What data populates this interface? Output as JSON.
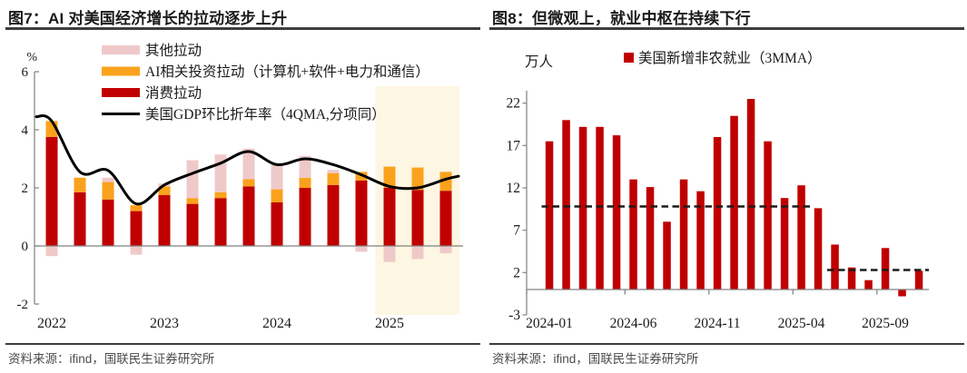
{
  "panels": [
    {
      "title": "图7：AI 对美国经济增长的拉动逐步上升",
      "source": "资料来源：ifind，国联民生证券研究所"
    },
    {
      "title": "图8：但微观上，就业中枢在持续下行",
      "source": "资料来源：ifind，国联民生证券研究所"
    }
  ],
  "palette": {
    "rule": "#3d3d3d",
    "title_text": "#1a1a1a",
    "source_text": "#4b4b4b",
    "axis": "#808080",
    "tick_text": "#1a1a1a"
  },
  "chart_data": [
    {
      "type": "bar",
      "variant": "stacked-bars-with-line",
      "title": "图7：AI 对美国经济增长的拉动逐步上升",
      "unit_label": "%",
      "ylim": [
        -2,
        6
      ],
      "yticks": [
        6,
        4,
        2,
        0,
        -2
      ],
      "grid": false,
      "legend_position": "top-left-inside",
      "axis_color": "#808080",
      "categories": [
        "2022Q1",
        "2022Q2",
        "2022Q3",
        "2022Q4",
        "2023Q1",
        "2023Q2",
        "2023Q3",
        "2023Q4",
        "2024Q1",
        "2024Q2",
        "2024Q3",
        "2024Q4",
        "2025Q1",
        "2025Q2",
        "2025Q3"
      ],
      "x_year_labels": [
        {
          "label": "2022",
          "index": 0
        },
        {
          "label": "2023",
          "index": 4
        },
        {
          "label": "2024",
          "index": 8
        },
        {
          "label": "2025",
          "index": 12
        }
      ],
      "series": [
        {
          "name": "消费拉动",
          "color": "#C00000",
          "values": [
            3.75,
            1.85,
            1.6,
            1.2,
            1.75,
            1.45,
            1.65,
            2.05,
            1.5,
            2.0,
            2.1,
            2.25,
            2.0,
            1.93,
            1.9
          ]
        },
        {
          "name": "AI相关投资拉动（计算机+软件+电力和通信）",
          "color": "#FAA21C",
          "values": [
            0.55,
            0.5,
            0.6,
            0.2,
            0.3,
            0.2,
            0.2,
            0.25,
            0.45,
            0.35,
            0.4,
            0.3,
            0.73,
            0.77,
            0.65
          ]
        },
        {
          "name": "其他拉动",
          "color": "#EFC9C9",
          "values": [
            -0.35,
            0,
            0.15,
            -0.3,
            0.1,
            1.3,
            1.3,
            1.05,
            0.85,
            0.75,
            0.12,
            -0.2,
            -0.55,
            -0.45,
            -0.25
          ]
        }
      ],
      "line": {
        "name": "美国GDP环比折年率（4QMA,分项同）",
        "color": "#000000",
        "start_value": 4.45,
        "values": [
          4.3,
          2.55,
          2.6,
          1.45,
          2.1,
          2.5,
          2.85,
          3.25,
          2.8,
          3.0,
          2.8,
          2.45,
          2.05,
          2.0,
          2.3
        ],
        "end_value": 2.4
      },
      "legend": [
        {
          "label": "其他拉动",
          "swatch": "rect",
          "color": "#EFC9C9"
        },
        {
          "label": "AI相关投资拉动（计算机+软件+电力和通信）",
          "swatch": "rect",
          "color": "#FAA21C"
        },
        {
          "label": "消费拉动",
          "swatch": "rect",
          "color": "#C00000"
        },
        {
          "label": "美国GDP环比折年率（4QMA,分项同）",
          "swatch": "line",
          "color": "#000000"
        }
      ],
      "highlight_band": {
        "from_index": 12,
        "to_index": 14,
        "color": "#FDF6E2"
      }
    },
    {
      "type": "bar",
      "title": "图8：但微观上，就业中枢在持续下行",
      "unit_label": "万人",
      "ylim": [
        -3,
        24
      ],
      "yticks": [
        22,
        17,
        12,
        7,
        2,
        -3
      ],
      "grid": false,
      "legend_position": "top-inside",
      "axis_color": "#808080",
      "categories": [
        "2024-01",
        "2024-02",
        "2024-03",
        "2024-04",
        "2024-05",
        "2024-06",
        "2024-07",
        "2024-08",
        "2024-09",
        "2024-10",
        "2024-11",
        "2024-12",
        "2025-01",
        "2025-02",
        "2025-03",
        "2025-04",
        "2025-05",
        "2025-06",
        "2025-07",
        "2025-08",
        "2025-09",
        "2025-10",
        "2025-11"
      ],
      "x_tick_labels": [
        {
          "label": "2024-01",
          "index": 0
        },
        {
          "label": "2024-06",
          "index": 5
        },
        {
          "label": "2024-11",
          "index": 10
        },
        {
          "label": "2025-04",
          "index": 15
        },
        {
          "label": "2025-09",
          "index": 20
        }
      ],
      "series": [
        {
          "name": "美国新增非农就业（3MMA）",
          "color": "#C00000",
          "values": [
            17.5,
            20.0,
            19.2,
            19.2,
            18.2,
            13.0,
            12.1,
            8.0,
            13.0,
            11.6,
            18.0,
            20.5,
            22.5,
            17.5,
            10.8,
            12.3,
            9.6,
            5.3,
            2.6,
            1.1,
            4.9,
            -0.8,
            2.2
          ]
        }
      ],
      "mean_lines": [
        {
          "value": 9.8,
          "from_index": 0,
          "to_index": 15,
          "color": "#1c1c1c"
        },
        {
          "value": 2.3,
          "from_index": 17,
          "to_index": 22,
          "color": "#1c1c1c"
        }
      ]
    }
  ]
}
